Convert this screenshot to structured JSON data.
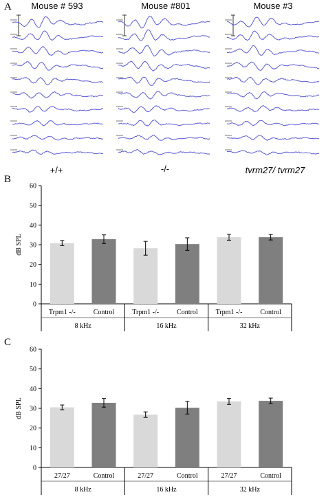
{
  "panelA": {
    "letter": "A",
    "mice": [
      {
        "title": "Mouse # 593",
        "genotype": "+/+",
        "italic": false,
        "traces": 10
      },
      {
        "title": "Mouse #801",
        "genotype": "-/-",
        "italic": false,
        "traces": 10
      },
      {
        "title": "Mouse #3",
        "genotype": "tvrm27/ tvrm27",
        "italic": true,
        "traces": 10
      }
    ],
    "trace_color": "#5a5ad2"
  },
  "chart_data": [
    {
      "type": "bar",
      "panel": "B",
      "ylabel": "dB SPL",
      "ylim": [
        0,
        60
      ],
      "yticks": [
        "0",
        "10",
        "20",
        "30",
        "40",
        "50",
        "60"
      ],
      "groups": [
        "8 kHz",
        "16 kHz",
        "32 kHz"
      ],
      "categories": [
        "Trpm1 -/-",
        "Control",
        "Trpm1 -/-",
        "Control",
        "Trpm1 -/-",
        "Control"
      ],
      "values": [
        30.8,
        32.8,
        28.2,
        30.3,
        33.8,
        33.8
      ],
      "errors": [
        1.3,
        2.2,
        3.5,
        3.2,
        1.5,
        1.4
      ],
      "colors": [
        "#d9d9d9",
        "#7f7f7f",
        "#d9d9d9",
        "#7f7f7f",
        "#d9d9d9",
        "#7f7f7f"
      ]
    },
    {
      "type": "bar",
      "panel": "C",
      "ylabel": "dB SPL",
      "ylim": [
        0,
        60
      ],
      "yticks": [
        "0",
        "10",
        "20",
        "30",
        "40",
        "50",
        "60"
      ],
      "groups": [
        "8 kHz",
        "16 kHz",
        "32 kHz"
      ],
      "categories": [
        "27/27",
        "Control",
        "27/27",
        "Control",
        "27/27",
        "Control"
      ],
      "values": [
        30.5,
        32.8,
        26.8,
        30.3,
        33.5,
        33.8
      ],
      "errors": [
        1.2,
        2.2,
        1.4,
        3.2,
        1.5,
        1.4
      ],
      "colors": [
        "#d9d9d9",
        "#7f7f7f",
        "#d9d9d9",
        "#7f7f7f",
        "#d9d9d9",
        "#7f7f7f"
      ]
    }
  ]
}
